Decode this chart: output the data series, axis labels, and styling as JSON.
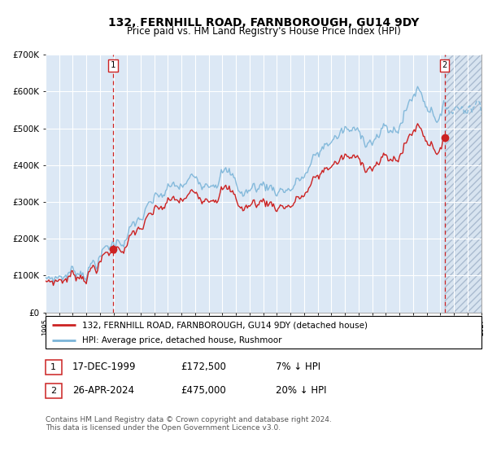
{
  "title": "132, FERNHILL ROAD, FARNBOROUGH, GU14 9DY",
  "subtitle": "Price paid vs. HM Land Registry's House Price Index (HPI)",
  "ylim": [
    0,
    700000
  ],
  "yticks": [
    0,
    100000,
    200000,
    300000,
    400000,
    500000,
    600000,
    700000
  ],
  "ytick_labels": [
    "£0",
    "£100K",
    "£200K",
    "£300K",
    "£400K",
    "£500K",
    "£600K",
    "£700K"
  ],
  "hpi_color": "#7ab4d8",
  "price_color": "#cc2222",
  "background_color": "#dce8f5",
  "grid_color": "#ffffff",
  "sale1_year": 1999.96,
  "sale1_price": 172500,
  "sale2_year": 2024.32,
  "sale2_price": 475000,
  "legend_line1": "132, FERNHILL ROAD, FARNBOROUGH, GU14 9DY (detached house)",
  "legend_line2": "HPI: Average price, detached house, Rushmoor",
  "table_row1": [
    "1",
    "17-DEC-1999",
    "£172,500",
    "7% ↓ HPI"
  ],
  "table_row2": [
    "2",
    "26-APR-2024",
    "£475,000",
    "20% ↓ HPI"
  ],
  "footnote": "Contains HM Land Registry data © Crown copyright and database right 2024.\nThis data is licensed under the Open Government Licence v3.0.",
  "future_start": 2024.32,
  "xmin": 1995,
  "xmax": 2027
}
